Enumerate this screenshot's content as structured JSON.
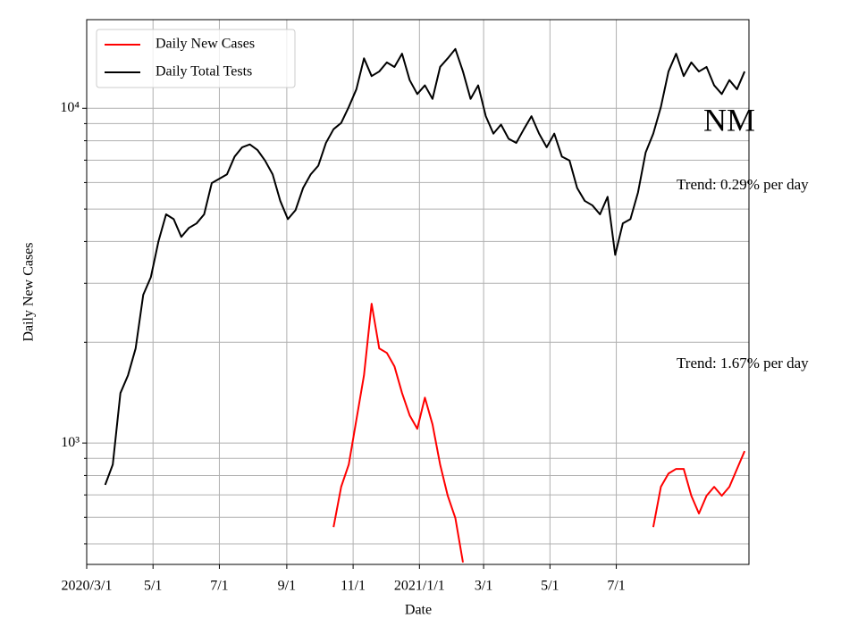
{
  "chart_data": {
    "type": "line",
    "ylabel": "Daily New Cases",
    "xlabel": "Date",
    "log_y": true,
    "grid": true,
    "legend": "upper left",
    "annotations": [
      "NM",
      "Trend: 0.29% per day",
      "Trend: 1.67% per day"
    ],
    "xlim": [
      "2020-03-01",
      "2021-10-31"
    ],
    "xticks": [
      {
        "value": "2020-03-01",
        "label": "2020/3/1"
      },
      {
        "value": "2020-05-01",
        "label": "5/1"
      },
      {
        "value": "2020-07-01",
        "label": "7/1"
      },
      {
        "value": "2020-09-01",
        "label": "9/1"
      },
      {
        "value": "2020-11-01",
        "label": "11/1"
      },
      {
        "value": "2021-01-01",
        "label": "2021/1/1"
      },
      {
        "value": "2021-03-01",
        "label": "3/1"
      },
      {
        "value": "2021-05-01",
        "label": "5/1"
      },
      {
        "value": "2021-07-01",
        "label": "7/1"
      }
    ],
    "ylim": [
      434,
      18400
    ],
    "yticks": [
      {
        "value": 1000,
        "label": "10³"
      },
      {
        "value": 10000,
        "label": "10⁴"
      }
    ],
    "y_minor_ticks": [
      500,
      600,
      700,
      800,
      900,
      2000,
      3000,
      4000,
      5000,
      6000,
      7000,
      8000,
      9000
    ],
    "x": [
      "2020-03-18",
      "2020-03-25",
      "2020-04-01",
      "2020-04-08",
      "2020-04-15",
      "2020-04-22",
      "2020-04-29",
      "2020-05-06",
      "2020-05-13",
      "2020-05-20",
      "2020-05-27",
      "2020-06-03",
      "2020-06-10",
      "2020-06-17",
      "2020-06-24",
      "2020-07-01",
      "2020-07-08",
      "2020-07-15",
      "2020-07-22",
      "2020-07-29",
      "2020-08-05",
      "2020-08-12",
      "2020-08-19",
      "2020-08-26",
      "2020-09-02",
      "2020-09-09",
      "2020-09-16",
      "2020-09-23",
      "2020-09-30",
      "2020-10-07",
      "2020-10-14",
      "2020-10-21",
      "2020-10-28",
      "2020-11-04",
      "2020-11-11",
      "2020-11-18",
      "2020-11-25",
      "2020-12-02",
      "2020-12-09",
      "2020-12-16",
      "2020-12-23",
      "2020-12-30",
      "2021-01-06",
      "2021-01-13",
      "2021-01-20",
      "2021-01-27",
      "2021-02-03",
      "2021-02-10",
      "2021-02-17",
      "2021-02-24",
      "2021-03-03",
      "2021-03-10",
      "2021-03-17",
      "2021-03-24",
      "2021-03-31",
      "2021-04-07",
      "2021-04-14",
      "2021-04-21",
      "2021-04-28",
      "2021-05-05",
      "2021-05-12",
      "2021-05-19",
      "2021-05-26",
      "2021-06-02",
      "2021-06-09",
      "2021-06-16",
      "2021-06-23",
      "2021-06-30",
      "2021-07-07",
      "2021-07-14",
      "2021-07-21",
      "2021-07-28",
      "2021-08-04",
      "2021-08-11",
      "2021-08-18",
      "2021-08-25",
      "2021-09-01",
      "2021-09-08",
      "2021-09-15",
      "2021-09-22",
      "2021-09-29",
      "2021-10-06",
      "2021-10-13",
      "2021-10-20",
      "2021-10-27"
    ],
    "series": [
      {
        "name": "Daily New Cases",
        "color": "#ff0000",
        "values": [
          null,
          null,
          null,
          null,
          null,
          null,
          null,
          null,
          null,
          null,
          null,
          null,
          null,
          null,
          null,
          null,
          null,
          null,
          null,
          null,
          null,
          null,
          null,
          null,
          null,
          null,
          null,
          null,
          null,
          null,
          561,
          740,
          863,
          1173,
          1594,
          2607,
          1917,
          1859,
          1695,
          1410,
          1210,
          1103,
          1367,
          1137,
          863,
          696,
          597,
          440,
          null,
          null,
          null,
          null,
          null,
          null,
          null,
          null,
          null,
          null,
          null,
          null,
          null,
          null,
          null,
          null,
          null,
          null,
          null,
          null,
          null,
          null,
          null,
          null,
          561,
          740,
          811,
          837,
          837,
          696,
          616,
          696,
          740,
          696,
          740,
          837,
          946
        ]
      },
      {
        "name": "Daily Total Tests",
        "color": "#000000",
        "values": [
          750,
          863,
          1410,
          1594,
          1917,
          2772,
          3130,
          4004,
          4822,
          4665,
          4130,
          4393,
          4530,
          4822,
          5978,
          6160,
          6348,
          7170,
          7650,
          7800,
          7510,
          6980,
          6348,
          5290,
          4665,
          4960,
          5780,
          6348,
          6740,
          7880,
          8660,
          9040,
          10090,
          11400,
          14100,
          12480,
          12880,
          13710,
          13290,
          14560,
          12140,
          11030,
          11710,
          10670,
          13290,
          14100,
          15040,
          12880,
          10670,
          11710,
          9470,
          8400,
          8940,
          8110,
          7880,
          8660,
          9470,
          8400,
          7650,
          8400,
          7170,
          6980,
          5780,
          5290,
          5130,
          4822,
          5440,
          3650,
          4530,
          4665,
          5610,
          7380,
          8400,
          10090,
          12880,
          14560,
          12480,
          13710,
          12880,
          13290,
          11710,
          11030,
          12140,
          11400,
          12880
        ]
      }
    ]
  }
}
